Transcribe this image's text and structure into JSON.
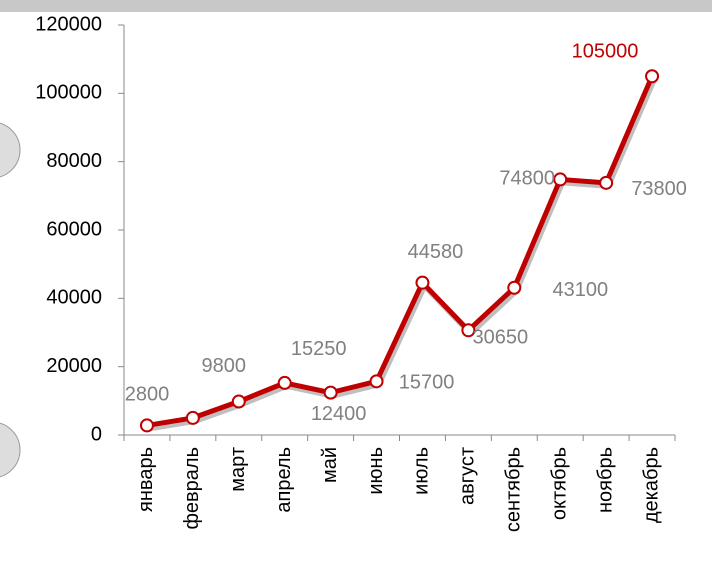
{
  "chart_data": {
    "type": "line",
    "categories": [
      "январь",
      "февраль",
      "март",
      "апрель",
      "май",
      "июнь",
      "июль",
      "август",
      "сентябрь",
      "октябрь",
      "ноябрь",
      "декабрь"
    ],
    "series": [
      {
        "color": "#c00000",
        "values": [
          2800,
          5000,
          9800,
          15250,
          12400,
          15700,
          44580,
          30650,
          43100,
          74800,
          73800,
          105000
        ],
        "value_labels": [
          "2800",
          null,
          "9800",
          "15250",
          "12400",
          "15700",
          "44580",
          "30650",
          "43100",
          "74800",
          "73800",
          "105000"
        ],
        "value_label_colors": [
          "#808080",
          null,
          "#808080",
          "#808080",
          "#808080",
          "#808080",
          "#808080",
          "#808080",
          "#808080",
          "#808080",
          "#808080",
          "#c00000"
        ]
      }
    ],
    "ylim": [
      0,
      120000
    ],
    "yticks": [
      0,
      20000,
      40000,
      60000,
      80000,
      100000,
      120000
    ],
    "grid": false
  }
}
